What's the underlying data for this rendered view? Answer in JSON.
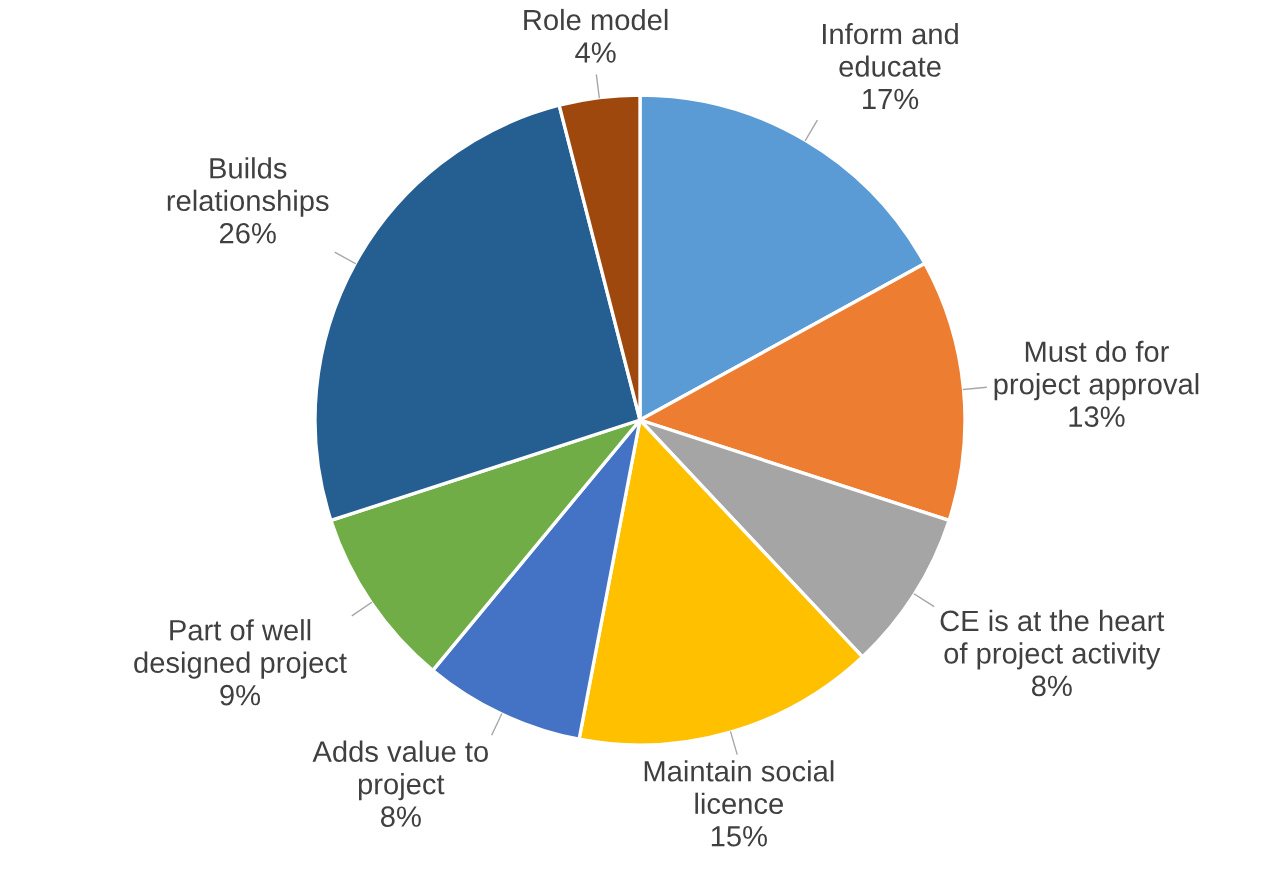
{
  "chart_data": {
    "type": "pie",
    "categories": [
      "Inform and\neducate",
      "Must do for\nproject approval",
      "CE is at the heart\nof project activity",
      "Maintain social\nlicence",
      "Adds value to\nproject",
      "Part of well\ndesigned project",
      "Builds\nrelationships",
      "Role model"
    ],
    "values": [
      17,
      13,
      8,
      15,
      8,
      9,
      26,
      4
    ],
    "value_labels": [
      "17%",
      "13%",
      "8%",
      "15%",
      "8%",
      "9%",
      "26%",
      "4%"
    ],
    "colors": [
      "#5b9bd5",
      "#ed7d31",
      "#a5a5a5",
      "#ffc000",
      "#4472c4",
      "#70ad47",
      "#255e91",
      "#9e480e"
    ]
  }
}
